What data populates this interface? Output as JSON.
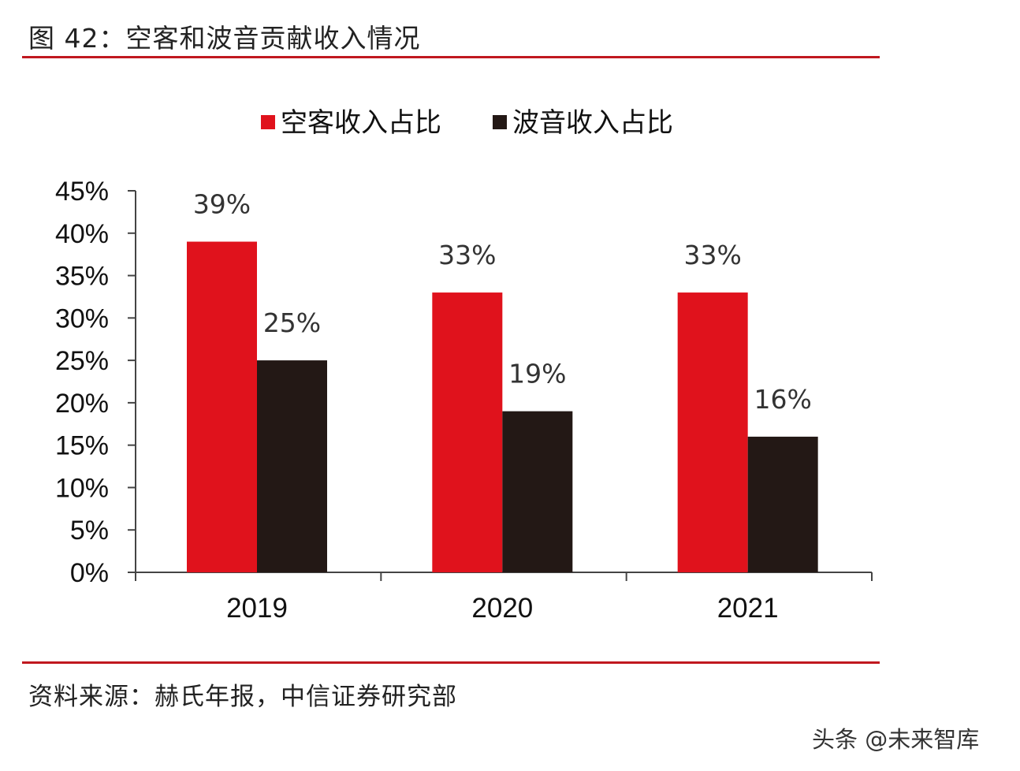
{
  "figure_title": "图 42：空客和波音贡献收入情况",
  "source_note": "资料来源：赫氏年报，中信证券研究部",
  "watermark": "头条 @未来智库",
  "colors": {
    "airbus": "#e0121c",
    "boeing": "#231815",
    "rule": "#c0181f"
  },
  "chart_data": {
    "type": "bar",
    "title": "",
    "xlabel": "",
    "ylabel": "",
    "categories": [
      "2019",
      "2020",
      "2021"
    ],
    "series": [
      {
        "name": "空客收入占比",
        "values": [
          39,
          33,
          33
        ],
        "labels": [
          "39%",
          "33%",
          "33%"
        ],
        "color": "#e0121c"
      },
      {
        "name": "波音收入占比",
        "values": [
          25,
          19,
          16
        ],
        "labels": [
          "25%",
          "19%",
          "16%"
        ],
        "color": "#231815"
      }
    ],
    "ylim": [
      0,
      45
    ],
    "yticks": [
      0,
      5,
      10,
      15,
      20,
      25,
      30,
      35,
      40,
      45
    ],
    "ytick_labels": [
      "0%",
      "5%",
      "10%",
      "15%",
      "20%",
      "25%",
      "30%",
      "35%",
      "40%",
      "45%"
    ],
    "grid": false,
    "legend_position": "top-center"
  }
}
